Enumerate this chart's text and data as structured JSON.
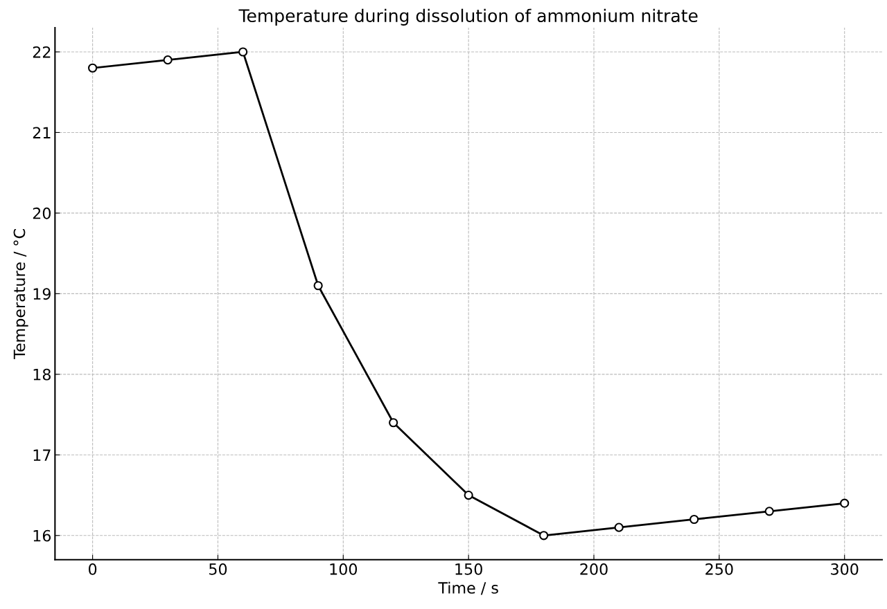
{
  "chart_data": {
    "type": "line",
    "title": "Temperature during dissolution of ammonium nitrate",
    "xlabel": "Time / s",
    "ylabel": "Temperature / °C",
    "x": [
      0,
      30,
      60,
      90,
      120,
      150,
      180,
      210,
      240,
      270,
      300
    ],
    "series": [
      {
        "color": "#000000",
        "values": [
          21.8,
          21.9,
          22.0,
          19.1,
          17.4,
          16.5,
          16.0,
          16.1,
          16.2,
          16.3,
          16.4
        ]
      }
    ],
    "xlim": [
      -15,
      315
    ],
    "ylim": [
      15.7,
      22.3
    ],
    "xticks": [
      0,
      50,
      100,
      150,
      200,
      250,
      300
    ],
    "yticks": [
      16,
      17,
      18,
      19,
      20,
      21,
      22
    ],
    "grid": true,
    "marker": "circle",
    "line_style": "solid",
    "legend": false
  }
}
